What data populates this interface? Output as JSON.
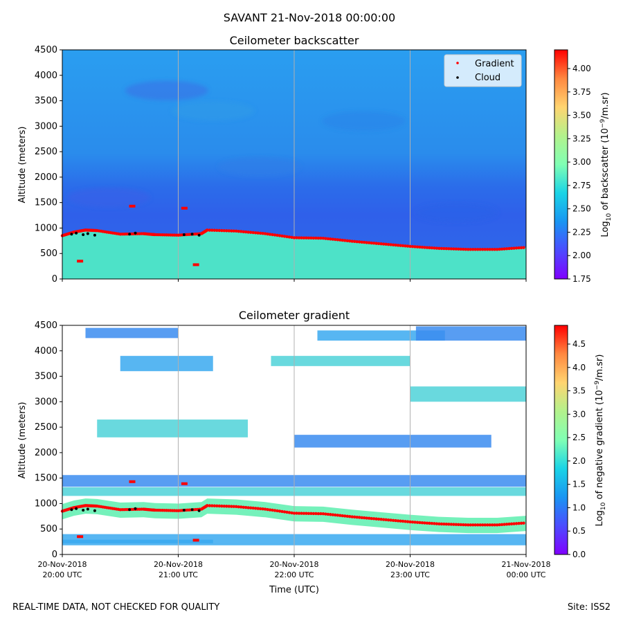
{
  "figure": {
    "suptitle": "SAVANT 21-Nov-2018 00:00:00",
    "footer_left": "REAL-TIME DATA, NOT CHECKED FOR QUALITY",
    "footer_right": "Site: ISS2"
  },
  "chart_data": [
    {
      "type": "heatmap",
      "title": "Ceilometer backscatter",
      "xlabel": "",
      "ylabel": "Altitude (meters)",
      "ylim": [
        0,
        4500
      ],
      "yticks": [
        0,
        500,
        1000,
        1500,
        2000,
        2500,
        3000,
        3500,
        4000,
        4500
      ],
      "xlim_hours": [
        20,
        24
      ],
      "grid": "vertical",
      "colorbar": {
        "label_prefix": "Log",
        "label_sub": "10",
        "label_mid": " of backscatter (10",
        "label_sup": "−9",
        "label_suffix": "/m.sr)",
        "range": [
          1.75,
          4.2
        ],
        "ticks": [
          "1.75",
          "2.00",
          "2.25",
          "2.50",
          "2.75",
          "3.00",
          "3.25",
          "3.50",
          "3.75",
          "4.00"
        ],
        "colormap": "rainbow"
      },
      "legend": {
        "location": "top-right",
        "entries": [
          {
            "label": "Gradient",
            "color": "#ff0000"
          },
          {
            "label": "Cloud",
            "color": "#000000"
          }
        ]
      },
      "gradient_line": {
        "t": [
          20.0,
          20.1,
          20.2,
          20.3,
          20.5,
          20.7,
          20.8,
          21.0,
          21.2,
          21.25,
          21.5,
          21.75,
          22.0,
          22.25,
          22.5,
          22.75,
          23.0,
          23.25,
          23.5,
          23.75,
          24.0
        ],
        "alt": [
          850,
          920,
          960,
          950,
          880,
          890,
          870,
          860,
          890,
          960,
          940,
          890,
          810,
          800,
          740,
          690,
          640,
          600,
          580,
          580,
          620
        ]
      },
      "gradient_outliers": [
        {
          "t": 20.6,
          "alt": 1430
        },
        {
          "t": 21.05,
          "alt": 1390
        },
        {
          "t": 21.15,
          "alt": 280
        },
        {
          "t": 20.15,
          "alt": 350
        }
      ],
      "cloud_points": [
        {
          "t": 20.08,
          "alt": 880
        },
        {
          "t": 20.12,
          "alt": 900
        },
        {
          "t": 20.18,
          "alt": 870
        },
        {
          "t": 20.22,
          "alt": 890
        },
        {
          "t": 20.28,
          "alt": 860
        },
        {
          "t": 20.58,
          "alt": 880
        },
        {
          "t": 20.63,
          "alt": 900
        },
        {
          "t": 21.05,
          "alt": 870
        },
        {
          "t": 21.12,
          "alt": 880
        },
        {
          "t": 21.18,
          "alt": 860
        }
      ]
    },
    {
      "type": "heatmap",
      "title": "Ceilometer gradient",
      "xlabel": "Time (UTC)",
      "ylabel": "Altitude (meters)",
      "ylim": [
        0,
        4500
      ],
      "yticks": [
        0,
        500,
        1000,
        1500,
        2000,
        2500,
        3000,
        3500,
        4000,
        4500
      ],
      "xlim_hours": [
        20,
        24
      ],
      "grid": "vertical",
      "xticks": [
        {
          "t": 20,
          "line1": "20-Nov-2018",
          "line2": "20:00 UTC"
        },
        {
          "t": 21,
          "line1": "20-Nov-2018",
          "line2": "21:00 UTC"
        },
        {
          "t": 22,
          "line1": "20-Nov-2018",
          "line2": "22:00 UTC"
        },
        {
          "t": 23,
          "line1": "20-Nov-2018",
          "line2": "23:00 UTC"
        },
        {
          "t": 24,
          "line1": "21-Nov-2018",
          "line2": "00:00 UTC"
        }
      ],
      "colorbar": {
        "label_prefix": "Log",
        "label_sub": "10",
        "label_mid": " of negative gradient (10",
        "label_sup": "−9",
        "label_suffix": "/m.sr)",
        "range": [
          0.0,
          4.9
        ],
        "ticks": [
          "0.0",
          "0.5",
          "1.0",
          "1.5",
          "2.0",
          "2.5",
          "3.0",
          "3.5",
          "4.0",
          "4.5"
        ],
        "colormap": "rainbow"
      },
      "bands": [
        {
          "t0": 20.0,
          "t1": 21.3,
          "lo": 220,
          "hi": 290
        },
        {
          "t0": 20.0,
          "t1": 24.0,
          "lo": 1150,
          "hi": 1320
        },
        {
          "t0": 20.0,
          "t1": 24.0,
          "lo": 1330,
          "hi": 1560
        },
        {
          "t0": 20.0,
          "t1": 24.0,
          "lo": 180,
          "hi": 400
        },
        {
          "t0": 20.3,
          "t1": 21.6,
          "lo": 2300,
          "hi": 2650
        },
        {
          "t0": 22.0,
          "t1": 23.7,
          "lo": 2100,
          "hi": 2350
        },
        {
          "t0": 20.5,
          "t1": 21.3,
          "lo": 3600,
          "hi": 3900
        },
        {
          "t0": 21.8,
          "t1": 23.0,
          "lo": 3700,
          "hi": 3900
        },
        {
          "t0": 20.2,
          "t1": 21.0,
          "lo": 4250,
          "hi": 4450
        },
        {
          "t0": 22.2,
          "t1": 23.3,
          "lo": 4200,
          "hi": 4400
        },
        {
          "t0": 23.0,
          "t1": 24.0,
          "lo": 3000,
          "hi": 3300
        },
        {
          "t0": 23.05,
          "t1": 24.0,
          "lo": 4200,
          "hi": 4480
        }
      ],
      "gradient_line": {
        "t": [
          20.0,
          20.1,
          20.2,
          20.3,
          20.5,
          20.7,
          20.8,
          21.0,
          21.2,
          21.25,
          21.5,
          21.75,
          22.0,
          22.25,
          22.5,
          22.75,
          23.0,
          23.25,
          23.5,
          23.75,
          24.0
        ],
        "alt": [
          850,
          920,
          960,
          950,
          880,
          890,
          870,
          860,
          890,
          960,
          940,
          890,
          810,
          800,
          740,
          690,
          640,
          600,
          580,
          580,
          620
        ]
      },
      "gradient_outliers": [
        {
          "t": 20.6,
          "alt": 1430
        },
        {
          "t": 21.05,
          "alt": 1390
        },
        {
          "t": 21.15,
          "alt": 280
        },
        {
          "t": 20.15,
          "alt": 350
        }
      ],
      "cloud_points": [
        {
          "t": 20.08,
          "alt": 880
        },
        {
          "t": 20.12,
          "alt": 900
        },
        {
          "t": 20.18,
          "alt": 870
        },
        {
          "t": 20.22,
          "alt": 890
        },
        {
          "t": 20.28,
          "alt": 860
        },
        {
          "t": 20.58,
          "alt": 880
        },
        {
          "t": 20.63,
          "alt": 900
        },
        {
          "t": 21.05,
          "alt": 870
        },
        {
          "t": 21.12,
          "alt": 880
        },
        {
          "t": 21.18,
          "alt": 860
        }
      ]
    }
  ]
}
